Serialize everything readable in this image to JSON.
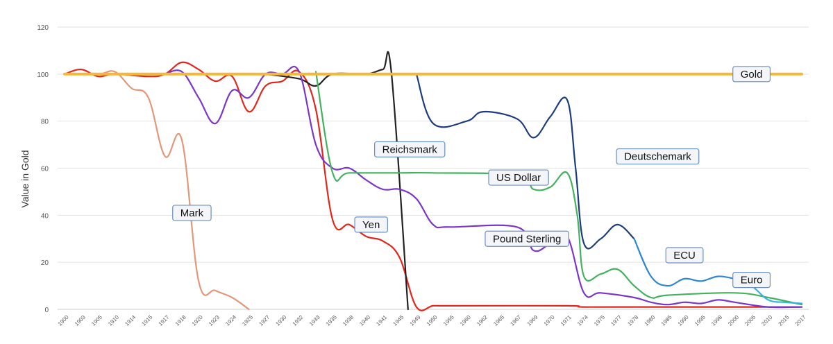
{
  "chart_data": {
    "type": "line",
    "title": "",
    "xlabel": "",
    "ylabel": "Value in Gold",
    "ylim": [
      0,
      120
    ],
    "yticks": [
      0,
      20,
      40,
      60,
      80,
      100,
      120
    ],
    "grid": "horizontal",
    "categories": [
      "1900",
      "1903",
      "1905",
      "1910",
      "1914",
      "1915",
      "1917",
      "1918",
      "1920",
      "1923",
      "1924",
      "1925",
      "1927",
      "1930",
      "1932",
      "1933",
      "1935",
      "1938",
      "1940",
      "1941",
      "1945",
      "1949",
      "1950",
      "1955",
      "1960",
      "1962",
      "1965",
      "1967",
      "1969",
      "1970",
      "1971",
      "1974",
      "1975",
      "1977",
      "1978",
      "1980",
      "1985",
      "1990",
      "1995",
      "1998",
      "2000",
      "2005",
      "2010",
      "2015",
      "2017"
    ],
    "series": [
      {
        "name": "Mark",
        "color": "#e2977a",
        "label_at": [
          7.6,
          41
        ],
        "points": [
          [
            0,
            100
          ],
          [
            2,
            100
          ],
          [
            3,
            101
          ],
          [
            4,
            94
          ],
          [
            5,
            90
          ],
          [
            6,
            65
          ],
          [
            7,
            72
          ],
          [
            8,
            12
          ],
          [
            9,
            8
          ],
          [
            10,
            5
          ],
          [
            11,
            0
          ]
        ]
      },
      {
        "name": "Yen",
        "color": "#e1261c",
        "label_at": [
          18.3,
          36
        ],
        "points": [
          [
            0,
            100
          ],
          [
            1,
            102
          ],
          [
            2,
            99
          ],
          [
            3,
            100
          ],
          [
            5,
            99
          ],
          [
            6,
            100
          ],
          [
            7,
            105
          ],
          [
            8,
            102
          ],
          [
            9,
            97
          ],
          [
            10,
            99
          ],
          [
            11,
            84
          ],
          [
            12,
            95
          ],
          [
            13,
            97
          ],
          [
            14,
            101
          ],
          [
            15,
            85
          ],
          [
            16,
            38
          ],
          [
            17,
            36
          ],
          [
            18,
            31
          ],
          [
            19,
            29
          ],
          [
            20,
            22
          ],
          [
            21,
            1
          ],
          [
            22,
            1.5
          ],
          [
            23,
            1.5
          ],
          [
            30,
            1.5
          ],
          [
            31,
            1
          ],
          [
            35,
            1
          ],
          [
            44,
            1
          ]
        ]
      },
      {
        "name": "Reichsmark",
        "color": "#222222",
        "label_at": [
          20.6,
          68
        ],
        "points": [
          [
            12,
            100
          ],
          [
            14,
            98
          ],
          [
            15,
            95
          ],
          [
            16,
            100
          ],
          [
            18,
            100
          ],
          [
            19,
            102
          ],
          [
            19.5,
            101
          ],
          [
            20.5,
            0
          ]
        ]
      },
      {
        "name": "Pound Sterling",
        "color": "#7b35c8",
        "label_at": [
          27.6,
          30
        ],
        "points": [
          [
            6,
            100
          ],
          [
            7,
            101
          ],
          [
            8,
            90
          ],
          [
            9,
            79
          ],
          [
            10,
            93
          ],
          [
            11,
            90
          ],
          [
            12,
            100
          ],
          [
            13,
            100
          ],
          [
            14,
            101
          ],
          [
            15,
            70
          ],
          [
            16,
            60
          ],
          [
            17,
            60
          ],
          [
            18,
            55
          ],
          [
            19,
            51
          ],
          [
            20,
            51
          ],
          [
            21,
            47
          ],
          [
            22,
            36
          ],
          [
            23,
            35
          ],
          [
            27,
            35
          ],
          [
            28,
            25
          ],
          [
            29,
            28
          ],
          [
            30,
            31
          ],
          [
            31,
            7
          ],
          [
            32,
            7
          ],
          [
            34,
            5
          ],
          [
            35,
            3
          ],
          [
            36,
            2
          ],
          [
            37,
            3
          ],
          [
            38,
            2.5
          ],
          [
            39,
            4
          ],
          [
            40,
            3
          ],
          [
            42,
            1
          ],
          [
            44,
            1
          ]
        ]
      },
      {
        "name": "US Dollar",
        "color": "#44b15f",
        "label_at": [
          27.1,
          56
        ],
        "points": [
          [
            15,
            101
          ],
          [
            16,
            58
          ],
          [
            17,
            58
          ],
          [
            20,
            58
          ],
          [
            22,
            58
          ],
          [
            27,
            57
          ],
          [
            28,
            51
          ],
          [
            29,
            52
          ],
          [
            30,
            58
          ],
          [
            30.6,
            40
          ],
          [
            31,
            14
          ],
          [
            32,
            15
          ],
          [
            33,
            17
          ],
          [
            34,
            10
          ],
          [
            35,
            5
          ],
          [
            36,
            6
          ],
          [
            40,
            7
          ],
          [
            42,
            5
          ],
          [
            44,
            2
          ]
        ]
      },
      {
        "name": "Deutschemark",
        "color": "#1d3c7e",
        "label_at": [
          35.4,
          65
        ],
        "points": [
          [
            21,
            100
          ],
          [
            22,
            79
          ],
          [
            24,
            80
          ],
          [
            25,
            84
          ],
          [
            27,
            81
          ],
          [
            28,
            73
          ],
          [
            29,
            82
          ],
          [
            30,
            89
          ],
          [
            30.5,
            60
          ],
          [
            31,
            28
          ],
          [
            32,
            30
          ],
          [
            33,
            36
          ],
          [
            34,
            30
          ]
        ]
      },
      {
        "name": "ECU",
        "color": "#2e86d1",
        "label_at": [
          37.0,
          23
        ],
        "points": [
          [
            34,
            30
          ],
          [
            35,
            14
          ],
          [
            36,
            10
          ],
          [
            37,
            13
          ],
          [
            38,
            12
          ],
          [
            39,
            14
          ],
          [
            40,
            13
          ]
        ]
      },
      {
        "name": "Euro",
        "color": "#35b2e0",
        "label_at": [
          41.0,
          12.5
        ],
        "points": [
          [
            40,
            13
          ],
          [
            41,
            10
          ],
          [
            42,
            4
          ],
          [
            43,
            3
          ],
          [
            44,
            2.5
          ]
        ]
      },
      {
        "name": "Gold",
        "color": "#f4b73a",
        "label_at": [
          41.0,
          100
        ],
        "points": [
          [
            0,
            100
          ],
          [
            44,
            100
          ]
        ]
      }
    ]
  }
}
